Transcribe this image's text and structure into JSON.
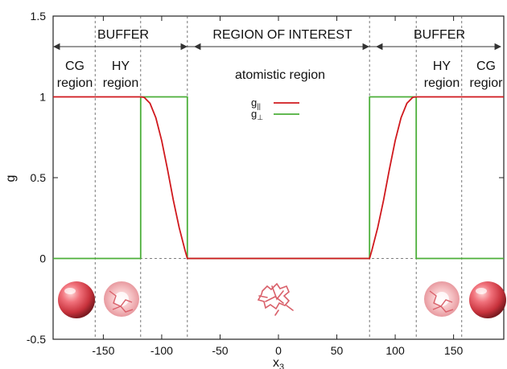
{
  "chart_data": {
    "type": "line",
    "xlabel": "x",
    "xlabel_subscript": "3",
    "ylabel": "g",
    "xlim": [
      -193,
      193
    ],
    "ylim": [
      -0.5,
      1.5
    ],
    "xticks": [
      -150,
      -100,
      -50,
      0,
      50,
      100,
      150
    ],
    "xtick_labels": [
      "-150",
      "-100",
      "-50",
      "0",
      "50",
      "100",
      "150"
    ],
    "yticks": [
      -0.5,
      0,
      0.5,
      1,
      1.5
    ],
    "ytick_labels": [
      "-0.5",
      "0",
      "0.5",
      "1",
      "1.5"
    ],
    "grid": false,
    "legend_position": "top-center",
    "colors": {
      "parallel": "#d0191e",
      "perpendicular": "#4caf3a"
    },
    "series": [
      {
        "name": "g",
        "name_subscript": "||",
        "color": "#d0191e",
        "x": [
          -193,
          -118,
          -115,
          -110,
          -105,
          -100,
          -95,
          -90,
          -85,
          -80,
          -78,
          78,
          80,
          85,
          90,
          95,
          100,
          105,
          110,
          115,
          118,
          193
        ],
        "y": [
          1,
          1,
          0.997,
          0.96,
          0.87,
          0.73,
          0.55,
          0.36,
          0.19,
          0.05,
          0,
          0,
          0.05,
          0.19,
          0.36,
          0.55,
          0.73,
          0.87,
          0.96,
          0.997,
          1,
          1
        ]
      },
      {
        "name": "g",
        "name_subscript": "⊥",
        "color": "#4caf3a",
        "x": [
          -193,
          -118,
          -118,
          -78,
          -78,
          78,
          78,
          118,
          118,
          193
        ],
        "y": [
          0,
          0,
          1,
          1,
          0,
          0,
          1,
          1,
          0,
          0
        ]
      }
    ],
    "region_boundaries": [
      -157,
      -118,
      -78,
      78,
      118,
      157
    ],
    "annotations": {
      "buffer_left": "BUFFER",
      "roi": "REGION OF INTEREST",
      "buffer_right": "BUFFER",
      "cg_left_1": "CG",
      "cg_left_2": "region",
      "hy_left_1": "HY",
      "hy_left_2": "region",
      "hy_right_1": "HY",
      "hy_right_2": "region",
      "cg_right_1": "CG",
      "cg_right_2": "regior",
      "atomistic": "atomistic region"
    }
  }
}
